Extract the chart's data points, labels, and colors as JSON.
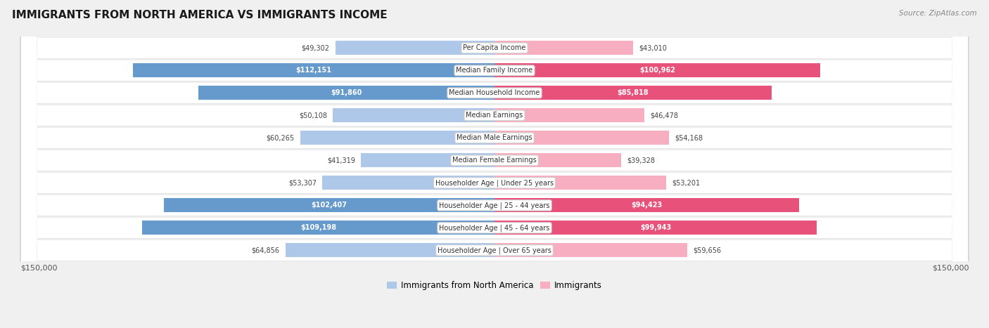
{
  "title": "IMMIGRANTS FROM NORTH AMERICA VS IMMIGRANTS INCOME",
  "source": "Source: ZipAtlas.com",
  "categories": [
    "Per Capita Income",
    "Median Family Income",
    "Median Household Income",
    "Median Earnings",
    "Median Male Earnings",
    "Median Female Earnings",
    "Householder Age | Under 25 years",
    "Householder Age | 25 - 44 years",
    "Householder Age | 45 - 64 years",
    "Householder Age | Over 65 years"
  ],
  "left_values": [
    49302,
    112151,
    91860,
    50108,
    60265,
    41319,
    53307,
    102407,
    109198,
    64856
  ],
  "right_values": [
    43010,
    100962,
    85818,
    46478,
    54168,
    39328,
    53201,
    94423,
    99943,
    59656
  ],
  "left_labels": [
    "$49,302",
    "$112,151",
    "$91,860",
    "$50,108",
    "$60,265",
    "$41,319",
    "$53,307",
    "$102,407",
    "$109,198",
    "$64,856"
  ],
  "right_labels": [
    "$43,010",
    "$100,962",
    "$85,818",
    "$46,478",
    "$54,168",
    "$39,328",
    "$53,201",
    "$94,423",
    "$99,943",
    "$59,656"
  ],
  "max_value": 150000,
  "left_color_light": "#adc8e8",
  "left_color_dark": "#6699cc",
  "right_color_light": "#f7aec0",
  "right_color_dark": "#e8527a",
  "bar_height": 0.62,
  "row_bg_color": "#f0f0f0",
  "row_fill_color": "#ffffff",
  "legend_left": "Immigrants from North America",
  "legend_right": "Immigrants",
  "left_axis_label": "$150,000",
  "right_axis_label": "$150,000",
  "large_threshold": 67000
}
